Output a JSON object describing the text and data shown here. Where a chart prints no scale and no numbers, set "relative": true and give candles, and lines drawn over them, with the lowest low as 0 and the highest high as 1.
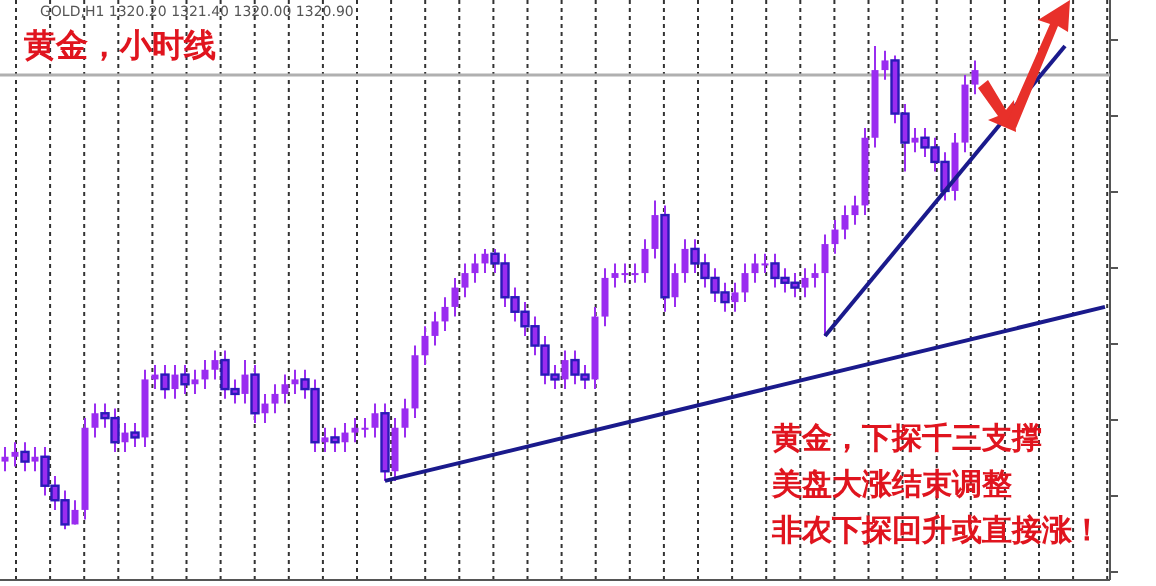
{
  "chart_data": {
    "type": "candlestick",
    "title": "黄金，小时线",
    "relative": true,
    "grid": "x",
    "color": "#9a2cf0",
    "annotations": [
      "GOLD,H1  1320.20 1321.40 1320.00 1320.90",
      "黄金，下探千三支撑",
      "美盘大涨结束调整",
      "非农下探回升或直接涨！"
    ],
    "categories": [
      null,
      null,
      null,
      null,
      null,
      null,
      null,
      null,
      null,
      null,
      null,
      null,
      null,
      null,
      null,
      null,
      null,
      null,
      null,
      null,
      null,
      null,
      null,
      null,
      null,
      null,
      null,
      null,
      null,
      null,
      null,
      null,
      null,
      null,
      null,
      null,
      null,
      null,
      null,
      null,
      null,
      null,
      null,
      null,
      null,
      null,
      null,
      null,
      null,
      null,
      null,
      null,
      null,
      null,
      null,
      null,
      null,
      null,
      null,
      null,
      null,
      null,
      null,
      null,
      null,
      null,
      null,
      null,
      null,
      null,
      null,
      null,
      null,
      null,
      null,
      null,
      null,
      null,
      null,
      null,
      null,
      null,
      null,
      null,
      null,
      null,
      null,
      null,
      null,
      null,
      null,
      null,
      null,
      null,
      null,
      null,
      null,
      null,
      null,
      null,
      null,
      null,
      null,
      null,
      null,
      null,
      null,
      null,
      null,
      null,
      null
    ],
    "ohlc": [
      [
        0.14,
        0.17,
        0.12,
        0.15
      ],
      [
        0.15,
        0.18,
        0.13,
        0.16
      ],
      [
        0.16,
        0.18,
        0.12,
        0.14
      ],
      [
        0.14,
        0.17,
        0.12,
        0.15
      ],
      [
        0.15,
        0.17,
        0.07,
        0.09
      ],
      [
        0.09,
        0.11,
        0.04,
        0.06
      ],
      [
        0.06,
        0.08,
        0,
        0.01
      ],
      [
        0.01,
        0.06,
        0.01,
        0.04
      ],
      [
        0.04,
        0.23,
        0.02,
        0.21
      ],
      [
        0.21,
        0.26,
        0.19,
        0.24
      ],
      [
        0.24,
        0.26,
        0.21,
        0.23
      ],
      [
        0.23,
        0.25,
        0.16,
        0.18
      ],
      [
        0.18,
        0.22,
        0.16,
        0.2
      ],
      [
        0.2,
        0.22,
        0.17,
        0.19
      ],
      [
        0.19,
        0.33,
        0.17,
        0.31
      ],
      [
        0.31,
        0.34,
        0.29,
        0.32
      ],
      [
        0.32,
        0.34,
        0.27,
        0.29
      ],
      [
        0.29,
        0.34,
        0.27,
        0.32
      ],
      [
        0.32,
        0.34,
        0.28,
        0.3
      ],
      [
        0.3,
        0.33,
        0.28,
        0.31
      ],
      [
        0.31,
        0.35,
        0.29,
        0.33
      ],
      [
        0.33,
        0.37,
        0.31,
        0.35
      ],
      [
        0.35,
        0.37,
        0.27,
        0.29
      ],
      [
        0.29,
        0.31,
        0.26,
        0.28
      ],
      [
        0.28,
        0.35,
        0.26,
        0.32
      ],
      [
        0.32,
        0.34,
        0.22,
        0.24
      ],
      [
        0.24,
        0.28,
        0.22,
        0.26
      ],
      [
        0.26,
        0.3,
        0.24,
        0.28
      ],
      [
        0.28,
        0.32,
        0.26,
        0.3
      ],
      [
        0.3,
        0.33,
        0.28,
        0.31
      ],
      [
        0.31,
        0.33,
        0.27,
        0.29
      ],
      [
        0.29,
        0.31,
        0.16,
        0.18
      ],
      [
        0.18,
        0.21,
        0.16,
        0.19
      ],
      [
        0.19,
        0.21,
        0.16,
        0.18
      ],
      [
        0.18,
        0.22,
        0.16,
        0.2
      ],
      [
        0.2,
        0.23,
        0.18,
        0.21
      ],
      [
        0.21,
        0.23,
        0.19,
        0.21
      ],
      [
        0.21,
        0.26,
        0.19,
        0.24
      ],
      [
        0.24,
        0.26,
        0.1,
        0.12
      ],
      [
        0.12,
        0.23,
        0.1,
        0.21
      ],
      [
        0.21,
        0.27,
        0.19,
        0.25
      ],
      [
        0.25,
        0.38,
        0.23,
        0.36
      ],
      [
        0.36,
        0.42,
        0.34,
        0.4
      ],
      [
        0.4,
        0.45,
        0.38,
        0.43
      ],
      [
        0.43,
        0.48,
        0.41,
        0.46
      ],
      [
        0.46,
        0.52,
        0.44,
        0.5
      ],
      [
        0.5,
        0.55,
        0.48,
        0.53
      ],
      [
        0.53,
        0.57,
        0.51,
        0.55
      ],
      [
        0.55,
        0.58,
        0.53,
        0.57
      ],
      [
        0.57,
        0.58,
        0.53,
        0.55
      ],
      [
        0.55,
        0.57,
        0.46,
        0.48
      ],
      [
        0.48,
        0.5,
        0.43,
        0.45
      ],
      [
        0.45,
        0.47,
        0.4,
        0.42
      ],
      [
        0.42,
        0.44,
        0.36,
        0.38
      ],
      [
        0.38,
        0.4,
        0.3,
        0.32
      ],
      [
        0.32,
        0.34,
        0.29,
        0.31
      ],
      [
        0.31,
        0.37,
        0.29,
        0.35
      ],
      [
        0.35,
        0.37,
        0.3,
        0.32
      ],
      [
        0.32,
        0.34,
        0.29,
        0.31
      ],
      [
        0.31,
        0.46,
        0.29,
        0.44
      ],
      [
        0.44,
        0.54,
        0.42,
        0.52
      ],
      [
        0.52,
        0.55,
        0.5,
        0.53
      ],
      [
        0.53,
        0.55,
        0.51,
        0.53
      ],
      [
        0.53,
        0.55,
        0.51,
        0.53
      ],
      [
        0.53,
        0.6,
        0.51,
        0.58
      ],
      [
        0.58,
        0.68,
        0.56,
        0.65
      ],
      [
        0.65,
        0.67,
        0.45,
        0.48
      ],
      [
        0.48,
        0.55,
        0.46,
        0.53
      ],
      [
        0.53,
        0.6,
        0.51,
        0.58
      ],
      [
        0.58,
        0.6,
        0.53,
        0.55
      ],
      [
        0.55,
        0.57,
        0.5,
        0.52
      ],
      [
        0.52,
        0.54,
        0.47,
        0.49
      ],
      [
        0.49,
        0.51,
        0.45,
        0.47
      ],
      [
        0.47,
        0.51,
        0.45,
        0.49
      ],
      [
        0.49,
        0.55,
        0.47,
        0.53
      ],
      [
        0.53,
        0.57,
        0.51,
        0.55
      ],
      [
        0.55,
        0.57,
        0.53,
        0.55
      ],
      [
        0.55,
        0.57,
        0.5,
        0.52
      ],
      [
        0.52,
        0.54,
        0.49,
        0.51
      ],
      [
        0.51,
        0.53,
        0.48,
        0.5
      ],
      [
        0.5,
        0.54,
        0.48,
        0.52
      ],
      [
        0.52,
        0.55,
        0.5,
        0.53
      ],
      [
        0.53,
        0.61,
        0.4,
        0.59
      ],
      [
        0.59,
        0.64,
        0.57,
        0.62
      ],
      [
        0.62,
        0.67,
        0.6,
        0.65
      ],
      [
        0.65,
        0.69,
        0.63,
        0.67
      ],
      [
        0.67,
        0.83,
        0.65,
        0.81
      ],
      [
        0.81,
        1.0,
        0.79,
        0.95
      ],
      [
        0.95,
        0.99,
        0.93,
        0.97
      ],
      [
        0.97,
        0.98,
        0.84,
        0.86
      ],
      [
        0.86,
        0.88,
        0.74,
        0.8
      ],
      [
        0.8,
        0.83,
        0.78,
        0.81
      ],
      [
        0.81,
        0.83,
        0.77,
        0.79
      ],
      [
        0.79,
        0.81,
        0.74,
        0.76
      ],
      [
        0.76,
        0.78,
        0.68,
        0.7
      ],
      [
        0.7,
        0.82,
        0.68,
        0.8
      ],
      [
        0.8,
        0.94,
        0.78,
        0.92
      ],
      [
        0.92,
        0.97,
        0.9,
        0.95
      ],
      null,
      null,
      null,
      null,
      null,
      null,
      null,
      null,
      null,
      null,
      null,
      null,
      null
    ],
    "series": [
      {
        "type": "line",
        "color": "#1a1a8c",
        "values": [
          null,
          null,
          null,
          null,
          null,
          null,
          null,
          null,
          null,
          null,
          null,
          null,
          null,
          null,
          null,
          null,
          null,
          null,
          null,
          null,
          null,
          null,
          null,
          null,
          null,
          null,
          null,
          null,
          null,
          null,
          null,
          null,
          null,
          null,
          null,
          null,
          null,
          null,
          0.1,
          null,
          null,
          null,
          null,
          null,
          null,
          null,
          null,
          null,
          null,
          null,
          null,
          null,
          null,
          null,
          null,
          null,
          null,
          null,
          null,
          null,
          null,
          null,
          null,
          null,
          null,
          null,
          null,
          null,
          null,
          null,
          null,
          null,
          null,
          null,
          null,
          null,
          null,
          null,
          null,
          null,
          null,
          null,
          null,
          null,
          null,
          null,
          null,
          null,
          null,
          null,
          null,
          null,
          null,
          null,
          null,
          null,
          null,
          null,
          null,
          null,
          null,
          null,
          null,
          null,
          null,
          null,
          null,
          null,
          null,
          null,
          0.46
        ]
      },
      {
        "type": "line",
        "color": "#1a1a8c",
        "values": [
          null,
          null,
          null,
          null,
          null,
          null,
          null,
          null,
          null,
          null,
          null,
          null,
          null,
          null,
          null,
          null,
          null,
          null,
          null,
          null,
          null,
          null,
          null,
          null,
          null,
          null,
          null,
          null,
          null,
          null,
          null,
          null,
          null,
          null,
          null,
          null,
          null,
          null,
          null,
          null,
          null,
          null,
          null,
          null,
          null,
          null,
          null,
          null,
          null,
          null,
          null,
          null,
          null,
          null,
          null,
          null,
          null,
          null,
          null,
          null,
          null,
          null,
          null,
          null,
          null,
          null,
          null,
          null,
          null,
          null,
          null,
          null,
          null,
          null,
          null,
          null,
          null,
          null,
          null,
          null,
          null,
          null,
          0.4,
          null,
          null,
          null,
          null,
          null,
          null,
          null,
          null,
          null,
          null,
          null,
          null,
          null,
          null,
          null,
          null,
          null,
          null,
          null,
          null,
          null,
          null,
          null,
          1.0,
          null,
          null,
          null,
          null
        ]
      }
    ],
    "ref_lines": [
      {
        "axis": "y",
        "value": 0.94,
        "color": "#b0b0b0"
      }
    ]
  }
}
